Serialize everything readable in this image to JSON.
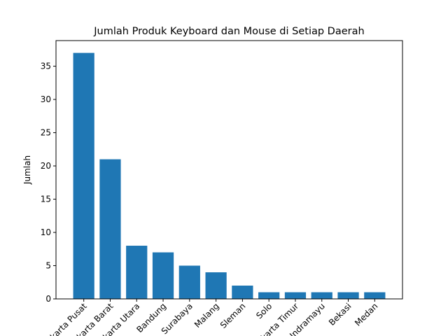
{
  "chart_data": {
    "type": "bar",
    "title": "Jumlah Produk Keyboard dan Mouse di Setiap Daerah",
    "xlabel": "",
    "ylabel": "Jumlah",
    "categories": [
      "Jakarta Pusat",
      "Jakarta Barat",
      "Jakarta Utara",
      "Bandung",
      "Surabaya",
      "Malang",
      "Sleman",
      "Solo",
      "Jakarta Timur",
      "Indramayu",
      "Bekasi",
      "Medan"
    ],
    "values": [
      37,
      21,
      8,
      7,
      5,
      4,
      2,
      1,
      1,
      1,
      1,
      1
    ],
    "ylim": [
      0,
      38.85
    ],
    "yticks": [
      0,
      5,
      10,
      15,
      20,
      25,
      30,
      35
    ],
    "bar_color": "#1f77b4",
    "grid": false,
    "legend": "none",
    "xtick_rotation": 45
  }
}
